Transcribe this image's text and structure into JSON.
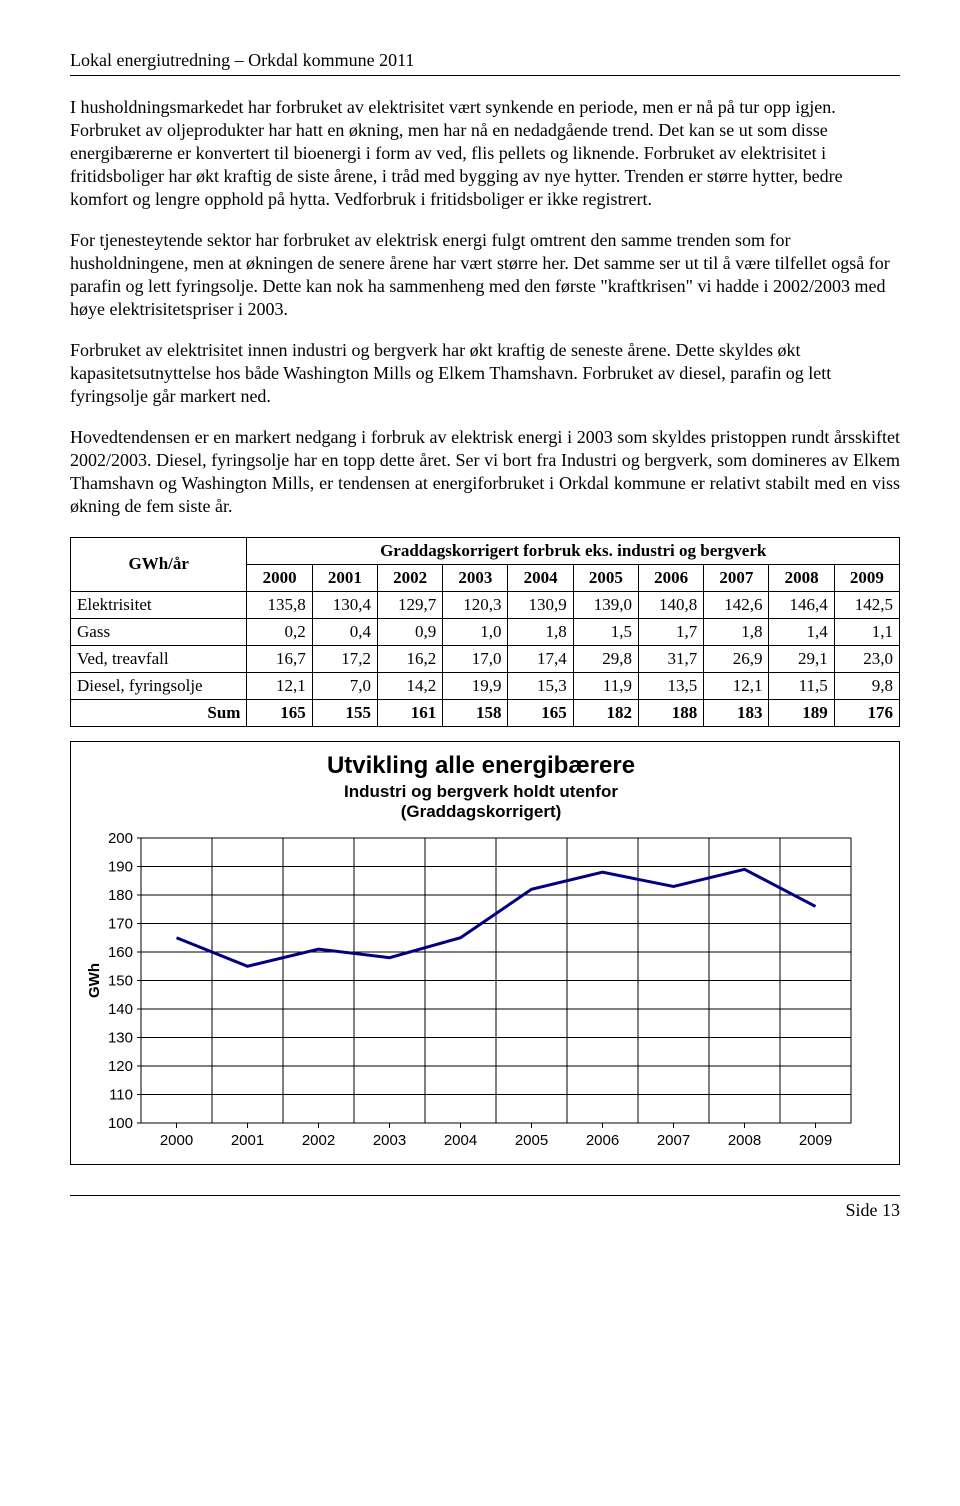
{
  "header": "Lokal energiutredning – Orkdal kommune 2011",
  "paragraphs": {
    "p1": "I husholdningsmarkedet har forbruket av elektrisitet vært synkende en periode, men er nå på tur opp igjen. Forbruket av oljeprodukter har hatt en økning, men har nå en nedadgående trend. Det kan se ut som disse energibærerne er konvertert til bioenergi i form av ved, flis pellets og liknende. Forbruket av elektrisitet i fritidsboliger har økt kraftig de siste årene, i tråd med bygging av nye hytter. Trenden er større hytter, bedre komfort og lengre opphold på hytta. Vedforbruk i fritidsboliger er ikke registrert.",
    "p2": "For tjenesteytende sektor har forbruket av elektrisk energi fulgt omtrent den samme trenden som for husholdningene, men at økningen de senere årene har vært større her. Det samme ser ut til å være tilfellet også for parafin og lett fyringsolje. Dette kan nok ha sammenheng med den første \"kraftkrisen\" vi hadde i 2002/2003 med høye elektrisitetspriser i 2003.",
    "p3": "Forbruket av elektrisitet innen industri og bergverk har økt kraftig de seneste årene. Dette skyldes økt kapasitetsutnyttelse hos både Washington Mills og Elkem Thamshavn. Forbruket av diesel, parafin og lett fyringsolje går markert ned.",
    "p4": "Hovedtendensen er en markert nedgang i forbruk av elektrisk energi i 2003 som skyldes pristoppen rundt årsskiftet 2002/2003. Diesel, fyringsolje har en topp dette året. Ser vi bort fra Industri og bergverk, som domineres av Elkem Thamshavn og Washington Mills, er tendensen at energiforbruket i Orkdal kommune er relativt stabilt med en viss økning de fem siste år."
  },
  "table": {
    "row_header": "GWh/år",
    "title": "Graddagskorrigert forbruk eks. industri og bergverk",
    "years": [
      "2000",
      "2001",
      "2002",
      "2003",
      "2004",
      "2005",
      "2006",
      "2007",
      "2008",
      "2009"
    ],
    "rows": [
      {
        "label": "Elektrisitet",
        "vals": [
          "135,8",
          "130,4",
          "129,7",
          "120,3",
          "130,9",
          "139,0",
          "140,8",
          "142,6",
          "146,4",
          "142,5"
        ]
      },
      {
        "label": "Gass",
        "vals": [
          "0,2",
          "0,4",
          "0,9",
          "1,0",
          "1,8",
          "1,5",
          "1,7",
          "1,8",
          "1,4",
          "1,1"
        ]
      },
      {
        "label": "Ved, treavfall",
        "vals": [
          "16,7",
          "17,2",
          "16,2",
          "17,0",
          "17,4",
          "29,8",
          "31,7",
          "26,9",
          "29,1",
          "23,0"
        ]
      },
      {
        "label": "Diesel, fyringsolje",
        "vals": [
          "12,1",
          "7,0",
          "14,2",
          "19,9",
          "15,3",
          "11,9",
          "13,5",
          "12,1",
          "11,5",
          "9,8"
        ]
      }
    ],
    "sum": {
      "label": "Sum",
      "vals": [
        "165",
        "155",
        "161",
        "158",
        "165",
        "182",
        "188",
        "183",
        "189",
        "176"
      ]
    }
  },
  "chart": {
    "title": "Utvikling alle energibærere",
    "subtitle1": "Industri og bergverk holdt utenfor",
    "subtitle2": "(Graddagskorrigert)",
    "type": "line",
    "x_categories": [
      "2000",
      "2001",
      "2002",
      "2003",
      "2004",
      "2005",
      "2006",
      "2007",
      "2008",
      "2009"
    ],
    "y_label": "GWh",
    "ylim": [
      100,
      200
    ],
    "ytick_step": 10,
    "values": [
      165,
      155,
      161,
      158,
      165,
      182,
      188,
      183,
      189,
      176
    ],
    "line_color": "#000080",
    "line_width": 3,
    "grid_color": "#000000",
    "axis_color": "#000000",
    "background": "#ffffff",
    "font_family": "Arial",
    "label_fontsize": 15,
    "tick_fontsize": 15
  },
  "footer": "Side 13"
}
